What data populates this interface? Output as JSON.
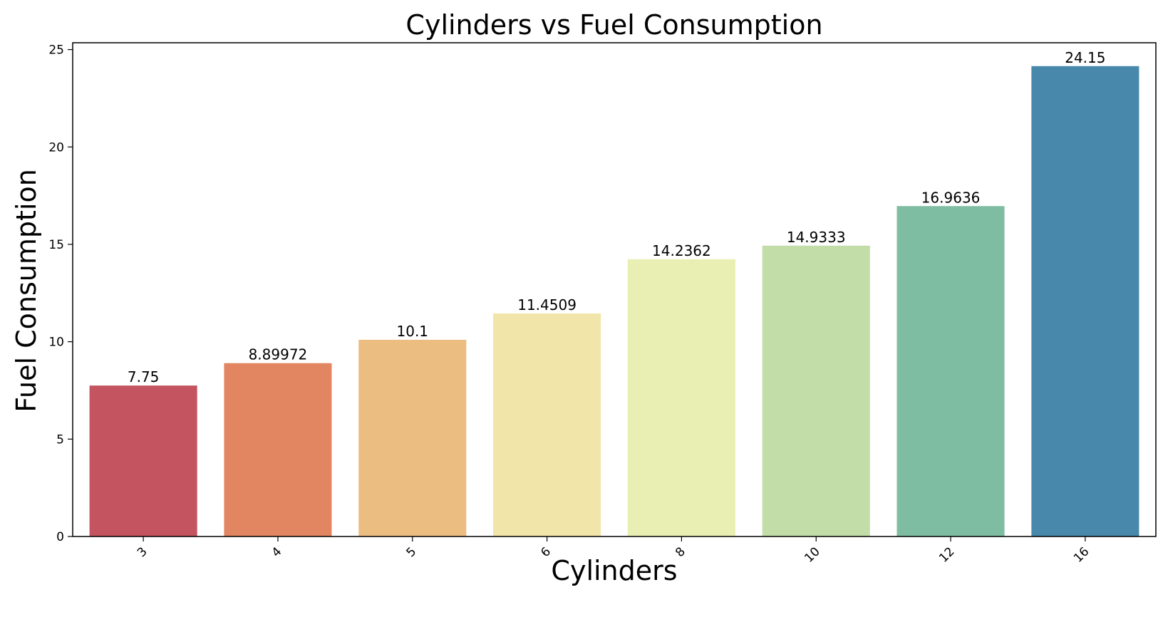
{
  "chart_data": {
    "type": "bar",
    "title": "Cylinders vs Fuel Consumption",
    "xlabel": "Cylinders",
    "ylabel": "Fuel Consumption",
    "categories": [
      "3",
      "4",
      "5",
      "6",
      "8",
      "10",
      "12",
      "16"
    ],
    "values": [
      7.75,
      8.89972,
      10.1,
      11.4509,
      14.2362,
      14.9333,
      16.9636,
      24.15
    ],
    "value_labels": [
      "7.75",
      "8.89972",
      "10.1",
      "11.4509",
      "14.2362",
      "14.9333",
      "16.9636",
      "24.15"
    ],
    "colors": [
      "#c4545f",
      "#e28561",
      "#ebbd81",
      "#f2e5aa",
      "#e9efb3",
      "#c2dda8",
      "#7fbda3",
      "#4788ab"
    ],
    "ylim": [
      0,
      25.35
    ],
    "yticks": [
      0,
      5,
      10,
      15,
      20,
      25
    ],
    "ytick_labels": [
      "0",
      "5",
      "10",
      "15",
      "20",
      "25"
    ],
    "xtick_rotation": -45,
    "grid": false,
    "legend": "none"
  }
}
